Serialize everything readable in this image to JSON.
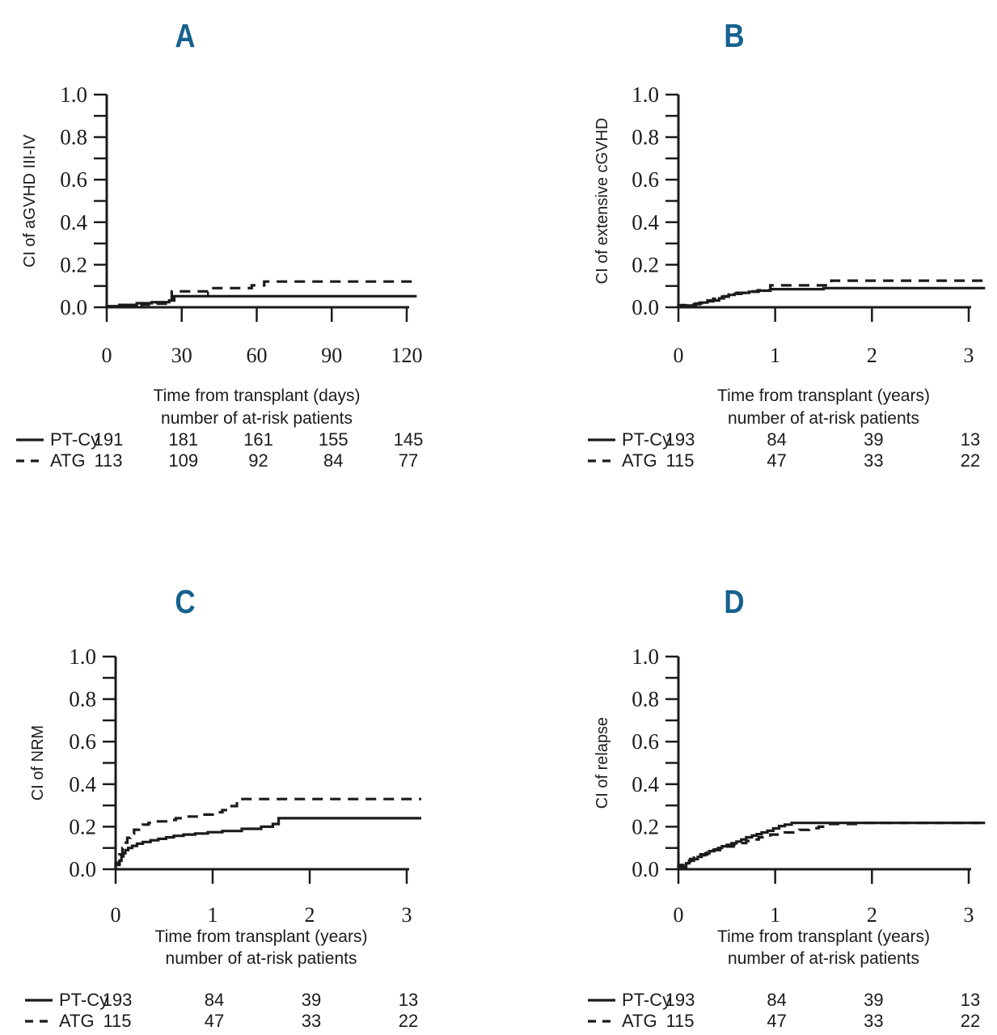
{
  "figure": {
    "background_color": "#ffffff",
    "letter_color": "#15618e",
    "line_color": "#1b1b1b",
    "groups": [
      "PT-Cy",
      "ATG"
    ]
  },
  "chart_data": [
    {
      "id": "A",
      "title": "A",
      "type": "step-line",
      "y_label": "CI of aGVHD III-IV",
      "x_label": "Time from transplant (days)",
      "at_risk_header": "number of at-risk patients",
      "xlim": [
        0,
        125
      ],
      "ylim": [
        0,
        1
      ],
      "x_ticks": [
        0,
        30,
        60,
        90,
        120
      ],
      "y_tick_labels": [
        "0.0",
        "0.2",
        "0.4",
        "0.6",
        "0.8",
        "1.0"
      ],
      "y_minor_tick_step": 0.1,
      "grid": false,
      "legend_position": "below-left",
      "series": [
        {
          "name": "PT-Cy",
          "line": "solid",
          "steps": [
            [
              0,
              0
            ],
            [
              5,
              0.005
            ],
            [
              12,
              0.011
            ],
            [
              18,
              0.019
            ],
            [
              25,
              0.024
            ],
            [
              27,
              0.032
            ],
            [
              40,
              0.052
            ],
            [
              124,
              0.052
            ]
          ],
          "censor_marks": [
            {
              "x": 40.5,
              "y_from": 0.052,
              "y_to": 0.073
            }
          ]
        },
        {
          "name": "ATG",
          "line": "dashed",
          "steps": [
            [
              0,
              0
            ],
            [
              10,
              0.004
            ],
            [
              14,
              0.009
            ],
            [
              20,
              0.013
            ],
            [
              26,
              0.017
            ],
            [
              42,
              0.075
            ],
            [
              58,
              0.09
            ],
            [
              63,
              0.103
            ],
            [
              87,
              0.121
            ],
            [
              124,
              0.121
            ]
          ],
          "censor_marks": []
        }
      ],
      "at_risk": {
        "time_points": [
          0,
          30,
          60,
          90,
          120
        ],
        "rows": [
          {
            "label": "PT-Cy",
            "line": "solid",
            "counts": [
              191,
              181,
              161,
              155,
              145
            ]
          },
          {
            "label": "ATG",
            "line": "dashed",
            "counts": [
              113,
              109,
              92,
              84,
              77
            ]
          }
        ]
      }
    },
    {
      "id": "B",
      "title": "B",
      "type": "step-line",
      "y_label": "CI of extensive cGVHD",
      "x_label": "Time from transplant (years)",
      "at_risk_header": "number of at-risk patients",
      "xlim": [
        0,
        3.2
      ],
      "ylim": [
        0,
        1
      ],
      "x_ticks": [
        0,
        1,
        2,
        3
      ],
      "y_tick_labels": [
        "0.0",
        "0.2",
        "0.4",
        "0.6",
        "0.8",
        "1.0"
      ],
      "y_minor_tick_step": 0.1,
      "grid": false,
      "legend_position": "below-left",
      "series": [
        {
          "name": "PT-Cy",
          "line": "solid",
          "steps": [
            [
              0,
              0
            ],
            [
              0.16,
              0.008
            ],
            [
              0.22,
              0.015
            ],
            [
              0.3,
              0.022
            ],
            [
              0.42,
              0.032
            ],
            [
              0.47,
              0.042
            ],
            [
              0.52,
              0.052
            ],
            [
              0.58,
              0.058
            ],
            [
              0.65,
              0.063
            ],
            [
              0.73,
              0.068
            ],
            [
              0.83,
              0.073
            ],
            [
              0.95,
              0.078
            ],
            [
              1.5,
              0.085
            ],
            [
              1.68,
              0.09
            ],
            [
              3.17,
              0.09
            ]
          ],
          "censor_marks": []
        },
        {
          "name": "ATG",
          "line": "dashed",
          "steps": [
            [
              0,
              0
            ],
            [
              0.18,
              0.01
            ],
            [
              0.26,
              0.018
            ],
            [
              0.36,
              0.028
            ],
            [
              0.45,
              0.04
            ],
            [
              0.52,
              0.05
            ],
            [
              0.6,
              0.06
            ],
            [
              0.7,
              0.068
            ],
            [
              0.82,
              0.075
            ],
            [
              0.95,
              0.08
            ],
            [
              1.58,
              0.103
            ],
            [
              2.78,
              0.125
            ],
            [
              3.17,
              0.125
            ]
          ],
          "censor_marks": []
        }
      ],
      "at_risk": {
        "time_points": [
          0,
          1,
          2,
          3
        ],
        "rows": [
          {
            "label": "PT-Cy",
            "line": "solid",
            "counts": [
              193,
              84,
              39,
              13
            ]
          },
          {
            "label": "ATG",
            "line": "dashed",
            "counts": [
              115,
              47,
              33,
              22
            ]
          }
        ]
      }
    },
    {
      "id": "C",
      "title": "C",
      "type": "step-line",
      "y_label": "CI of NRM",
      "x_label": "Time from transplant (years)",
      "at_risk_header": "number of at-risk patients",
      "xlim": [
        0,
        3.2
      ],
      "ylim": [
        0,
        1
      ],
      "x_ticks": [
        0,
        1,
        2,
        3
      ],
      "y_tick_labels": [
        "0.0",
        "0.2",
        "0.4",
        "0.6",
        "0.8",
        "1.0"
      ],
      "y_minor_tick_step": 0.1,
      "grid": false,
      "legend_position": "below-left",
      "series": [
        {
          "name": "PT-Cy",
          "line": "solid",
          "steps": [
            [
              0,
              0
            ],
            [
              0.04,
              0.02
            ],
            [
              0.06,
              0.04
            ],
            [
              0.08,
              0.06
            ],
            [
              0.1,
              0.075
            ],
            [
              0.13,
              0.09
            ],
            [
              0.17,
              0.1
            ],
            [
              0.22,
              0.11
            ],
            [
              0.28,
              0.12
            ],
            [
              0.36,
              0.128
            ],
            [
              0.44,
              0.136
            ],
            [
              0.52,
              0.143
            ],
            [
              0.6,
              0.15
            ],
            [
              0.7,
              0.157
            ],
            [
              0.82,
              0.163
            ],
            [
              0.95,
              0.168
            ],
            [
              1.1,
              0.174
            ],
            [
              1.3,
              0.18
            ],
            [
              1.5,
              0.19
            ],
            [
              1.62,
              0.2
            ],
            [
              1.68,
              0.213
            ],
            [
              2.7,
              0.24
            ],
            [
              3.15,
              0.24
            ]
          ],
          "censor_marks": []
        },
        {
          "name": "ATG",
          "line": "dashed",
          "steps": [
            [
              0,
              0
            ],
            [
              0.04,
              0.03
            ],
            [
              0.07,
              0.07
            ],
            [
              0.09,
              0.1
            ],
            [
              0.12,
              0.125
            ],
            [
              0.15,
              0.148
            ],
            [
              0.19,
              0.168
            ],
            [
              0.24,
              0.186
            ],
            [
              0.28,
              0.2
            ],
            [
              0.34,
              0.21
            ],
            [
              0.42,
              0.218
            ],
            [
              0.52,
              0.225
            ],
            [
              0.62,
              0.232
            ],
            [
              0.73,
              0.24
            ],
            [
              0.86,
              0.248
            ],
            [
              1.0,
              0.257
            ],
            [
              1.1,
              0.268
            ],
            [
              1.18,
              0.278
            ],
            [
              1.25,
              0.297
            ],
            [
              1.32,
              0.33
            ],
            [
              3.15,
              0.33
            ]
          ],
          "censor_marks": []
        }
      ],
      "at_risk": {
        "time_points": [
          0,
          1,
          2,
          3
        ],
        "rows": [
          {
            "label": "PT-Cy",
            "line": "solid",
            "counts": [
              193,
              84,
              39,
              13
            ]
          },
          {
            "label": "ATG",
            "line": "dashed",
            "counts": [
              115,
              47,
              33,
              22
            ]
          }
        ]
      }
    },
    {
      "id": "D",
      "title": "D",
      "type": "step-line",
      "y_label": "CI of relapse",
      "x_label": "Time from transplant (years)",
      "at_risk_header": "number of at-risk patients",
      "xlim": [
        0,
        3.2
      ],
      "ylim": [
        0,
        1
      ],
      "x_ticks": [
        0,
        1,
        2,
        3
      ],
      "y_tick_labels": [
        "0.0",
        "0.2",
        "0.4",
        "0.6",
        "0.8",
        "1.0"
      ],
      "y_minor_tick_step": 0.1,
      "grid": false,
      "legend_position": "below-left",
      "series": [
        {
          "name": "PT-Cy",
          "line": "solid",
          "steps": [
            [
              0,
              0
            ],
            [
              0.08,
              0.01
            ],
            [
              0.11,
              0.028
            ],
            [
              0.16,
              0.04
            ],
            [
              0.2,
              0.048
            ],
            [
              0.24,
              0.058
            ],
            [
              0.28,
              0.066
            ],
            [
              0.32,
              0.075
            ],
            [
              0.37,
              0.085
            ],
            [
              0.41,
              0.093
            ],
            [
              0.45,
              0.1
            ],
            [
              0.5,
              0.108
            ],
            [
              0.55,
              0.115
            ],
            [
              0.6,
              0.122
            ],
            [
              0.65,
              0.13
            ],
            [
              0.7,
              0.14
            ],
            [
              0.76,
              0.15
            ],
            [
              0.81,
              0.158
            ],
            [
              0.86,
              0.165
            ],
            [
              0.92,
              0.173
            ],
            [
              0.98,
              0.181
            ],
            [
              1.04,
              0.192
            ],
            [
              1.1,
              0.203
            ],
            [
              1.17,
              0.21
            ],
            [
              1.45,
              0.218
            ],
            [
              3.17,
              0.218
            ]
          ],
          "censor_marks": []
        },
        {
          "name": "ATG",
          "line": "dashed",
          "steps": [
            [
              0,
              0
            ],
            [
              0.12,
              0.02
            ],
            [
              0.16,
              0.048
            ],
            [
              0.19,
              0.065
            ],
            [
              0.3,
              0.07
            ],
            [
              0.36,
              0.08
            ],
            [
              0.43,
              0.09
            ],
            [
              0.5,
              0.098
            ],
            [
              0.57,
              0.107
            ],
            [
              0.63,
              0.115
            ],
            [
              0.7,
              0.123
            ],
            [
              0.77,
              0.133
            ],
            [
              0.83,
              0.14
            ],
            [
              0.95,
              0.15
            ],
            [
              1.1,
              0.163
            ],
            [
              1.25,
              0.173
            ],
            [
              1.35,
              0.185
            ],
            [
              1.45,
              0.193
            ],
            [
              1.55,
              0.2
            ],
            [
              1.92,
              0.213
            ],
            [
              2.05,
              0.218
            ],
            [
              3.17,
              0.218
            ]
          ],
          "censor_marks": []
        }
      ],
      "at_risk": {
        "time_points": [
          0,
          1,
          2,
          3
        ],
        "rows": [
          {
            "label": "PT-Cy",
            "line": "solid",
            "counts": [
              193,
              84,
              39,
              13
            ]
          },
          {
            "label": "ATG",
            "line": "dashed",
            "counts": [
              115,
              47,
              33,
              22
            ]
          }
        ]
      }
    }
  ]
}
